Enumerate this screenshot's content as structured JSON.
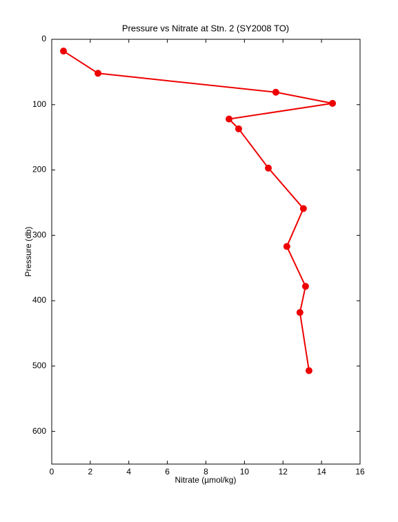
{
  "chart_data": {
    "type": "line",
    "title": "Pressure vs Nitrate at Stn. 2 (SY2008 TO)",
    "xlabel": "Nitrate (µmol/kg)",
    "ylabel": "Pressure (db)",
    "x": [
      0.61,
      2.4,
      11.63,
      14.57,
      9.2,
      9.7,
      11.24,
      13.06,
      12.2,
      13.17,
      12.88,
      13.35
    ],
    "series": [
      {
        "color": "#ee0000",
        "values": [
          18,
          52,
          81,
          98,
          122,
          137,
          197,
          259,
          317,
          378,
          418,
          507
        ]
      }
    ],
    "xlim": [
      0,
      16
    ],
    "xticks": [
      0,
      2,
      4,
      6,
      8,
      10,
      12,
      14,
      16
    ],
    "ylim": [
      0,
      650
    ],
    "yticks": [
      0,
      100,
      200,
      300,
      400,
      500,
      600
    ],
    "y_inverted": true,
    "grid": false,
    "markers": true
  }
}
